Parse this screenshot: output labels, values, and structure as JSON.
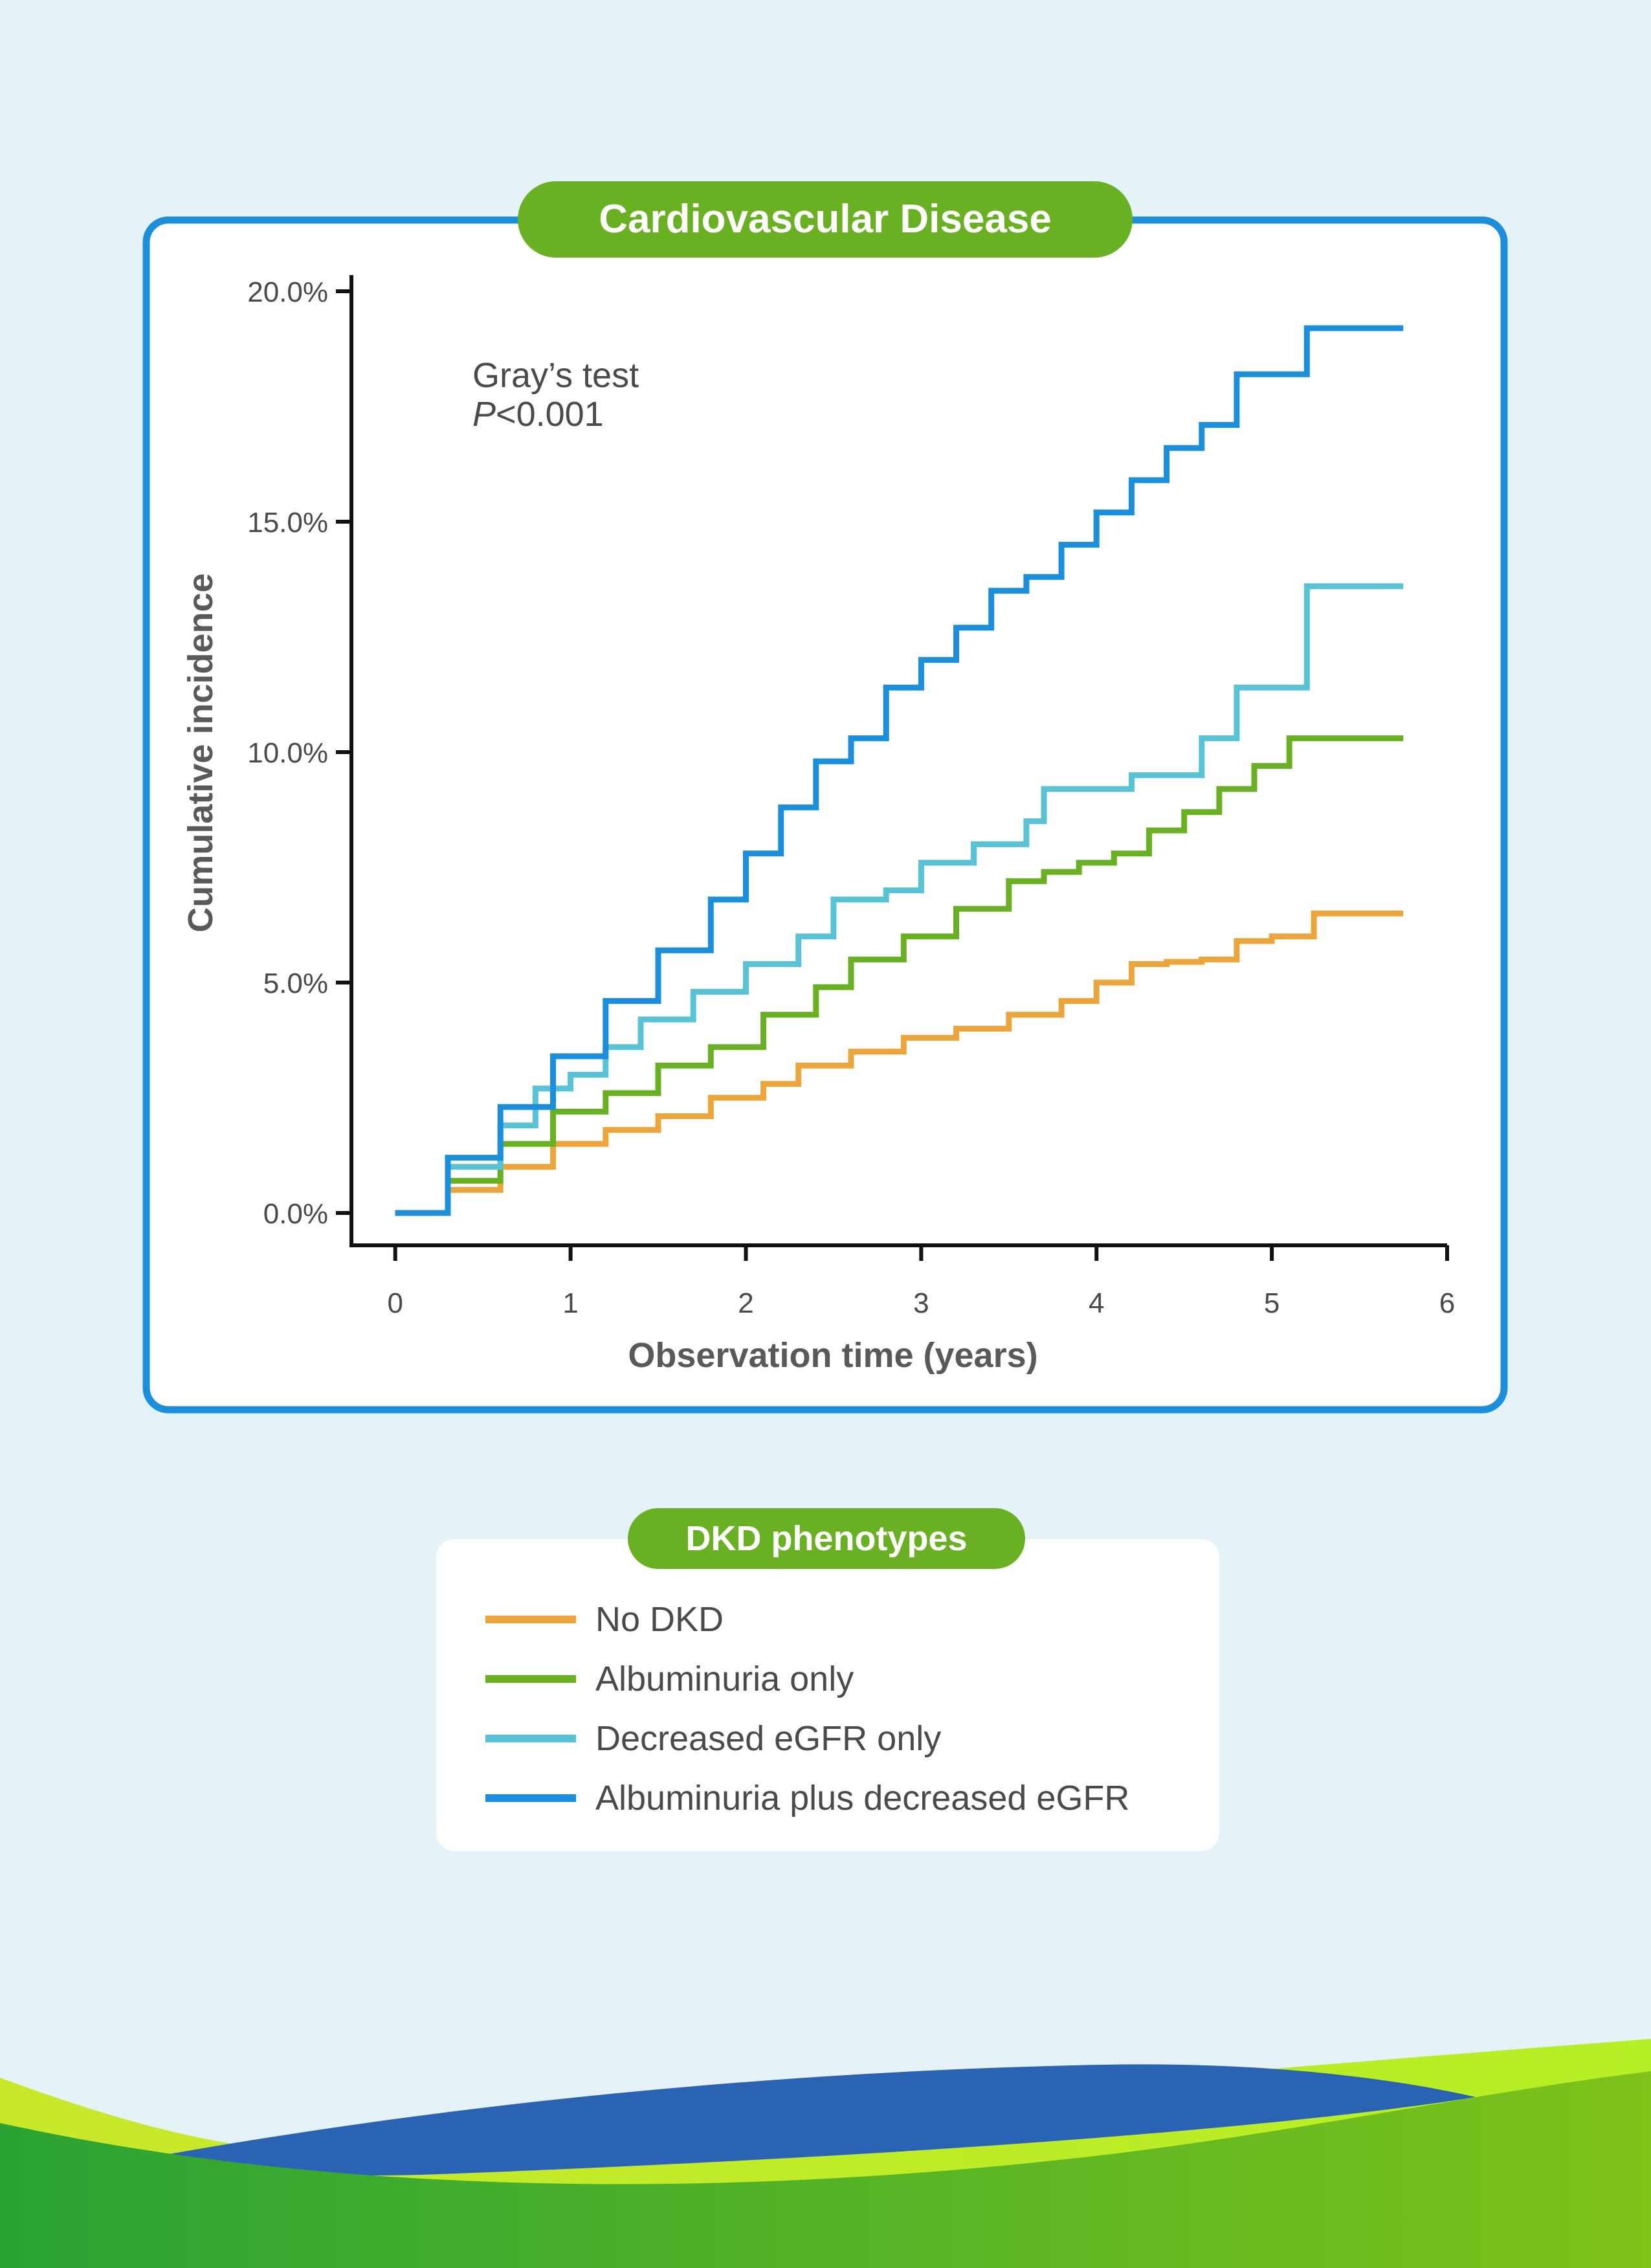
{
  "panel_title": "Cardiovascular Disease",
  "annotation": {
    "test": "Gray’s test",
    "p_letter": "P",
    "p_value": "<0.001"
  },
  "chart_data": {
    "type": "line",
    "step": true,
    "title": "Cardiovascular Disease",
    "xlabel": "Observation time (years)",
    "ylabel": "Cumulative incidence",
    "xlim": [
      -0.25,
      6
    ],
    "ylim": [
      0,
      20
    ],
    "x_ticks": [
      0,
      1,
      2,
      3,
      4,
      5,
      6
    ],
    "x_tick_labels": [
      "0",
      "1",
      "2",
      "3",
      "4",
      "5",
      "6"
    ],
    "y_ticks": [
      0,
      5,
      10,
      15,
      20
    ],
    "y_tick_labels": [
      "0.0%",
      "5.0%",
      "10.0%",
      "15.0%",
      "20.0%"
    ],
    "grid": false,
    "legend_position": "below",
    "series": [
      {
        "name": "No DKD",
        "color": "#eba53a",
        "x": [
          0,
          0.3,
          0.6,
          0.9,
          1.2,
          1.5,
          1.8,
          2.1,
          2.3,
          2.6,
          2.9,
          3.2,
          3.5,
          3.8,
          4.0,
          4.2,
          4.4,
          4.6,
          4.8,
          5.0,
          5.24,
          5.75
        ],
        "y": [
          0,
          0.5,
          1.0,
          1.5,
          1.8,
          2.1,
          2.5,
          2.8,
          3.2,
          3.5,
          3.8,
          4.0,
          4.3,
          4.6,
          5.0,
          5.4,
          5.45,
          5.5,
          5.9,
          6.0,
          6.5,
          6.5
        ]
      },
      {
        "name": "Albuminuria only",
        "color": "#6ab023",
        "x": [
          0,
          0.3,
          0.6,
          0.9,
          1.2,
          1.5,
          1.8,
          2.1,
          2.4,
          2.6,
          2.9,
          3.2,
          3.5,
          3.7,
          3.9,
          4.1,
          4.3,
          4.5,
          4.7,
          4.9,
          5.1,
          5.75
        ],
        "y": [
          0,
          0.7,
          1.5,
          2.2,
          2.6,
          3.2,
          3.6,
          4.3,
          4.9,
          5.5,
          6.0,
          6.6,
          7.2,
          7.4,
          7.6,
          7.8,
          8.3,
          8.7,
          9.2,
          9.7,
          10.3,
          10.3
        ]
      },
      {
        "name": "Decreased eGFR only",
        "color": "#58c3d4",
        "x": [
          0,
          0.3,
          0.6,
          0.8,
          1.0,
          1.2,
          1.4,
          1.7,
          2.0,
          2.3,
          2.5,
          2.8,
          3.0,
          3.3,
          3.6,
          3.7,
          4.2,
          4.6,
          4.8,
          5.2,
          5.75
        ],
        "y": [
          0,
          1.0,
          1.9,
          2.7,
          3.0,
          3.6,
          4.2,
          4.8,
          5.4,
          6.0,
          6.8,
          7.0,
          7.6,
          8.0,
          8.5,
          9.2,
          9.5,
          10.3,
          11.4,
          13.6,
          13.6
        ]
      },
      {
        "name": "Albuminuria plus decreased eGFR",
        "color": "#1b8fdb",
        "x": [
          0,
          0.3,
          0.6,
          0.9,
          1.2,
          1.5,
          1.8,
          2.0,
          2.2,
          2.4,
          2.6,
          2.8,
          3.0,
          3.2,
          3.4,
          3.6,
          3.8,
          4.0,
          4.2,
          4.4,
          4.6,
          4.8,
          5.2,
          5.75
        ],
        "y": [
          0,
          1.2,
          2.3,
          3.4,
          4.6,
          5.7,
          6.8,
          7.8,
          8.8,
          9.8,
          10.3,
          11.4,
          12.0,
          12.7,
          13.5,
          13.8,
          14.5,
          15.2,
          15.9,
          16.6,
          17.1,
          18.2,
          19.2,
          19.2
        ]
      }
    ]
  },
  "legend": {
    "title": "DKD phenotypes",
    "items": [
      {
        "label": "No DKD",
        "color": "#eba53a"
      },
      {
        "label": "Albuminuria only",
        "color": "#6ab023"
      },
      {
        "label": "Decreased eGFR only",
        "color": "#58c3d4"
      },
      {
        "label": "Albuminuria plus decreased eGFR",
        "color": "#1b8fdb"
      }
    ]
  }
}
